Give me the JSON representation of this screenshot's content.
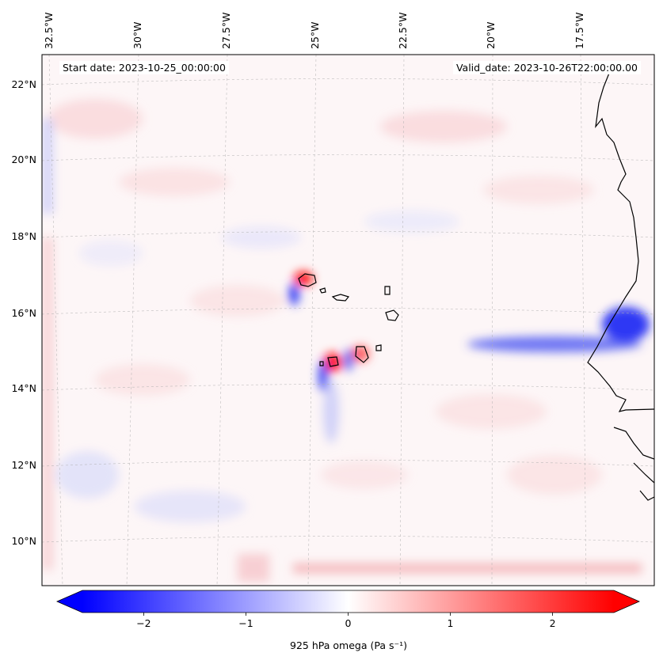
{
  "annotations": {
    "start_date": "Start date: 2023-10-25_00:00:00",
    "valid_date": "Valid_date: 2023-10-26T22:00:00.00"
  },
  "longitude_labels": [
    "32.5°W",
    "30°W",
    "27.5°W",
    "25°W",
    "22.5°W",
    "20°W",
    "17.5°W"
  ],
  "latitude_labels": [
    "22°N",
    "20°N",
    "18°N",
    "16°N",
    "14°N",
    "12°N",
    "10°N"
  ],
  "colorbar": {
    "ticks": [
      -2,
      -1,
      0,
      1,
      2
    ],
    "tick_labels": [
      "−2",
      "−1",
      "0",
      "1",
      "2"
    ],
    "range": [
      -2.6,
      2.6
    ],
    "label": "925 hPa omega (Pa s⁻¹)",
    "cmap_low": "#0000ff",
    "cmap_mid": "#ffffff",
    "cmap_high": "#ff0000"
  },
  "chart_data": {
    "type": "heatmap",
    "title": "",
    "variable": "925 hPa omega",
    "units": "Pa s⁻¹",
    "lon_range": [
      -33.0,
      -15.5
    ],
    "lat_range": [
      9.0,
      22.5
    ],
    "features": [
      {
        "name": "strong ascent band near west African coast",
        "lat": 15.3,
        "value": -2.3
      },
      {
        "name": "Santo Antão lee couplet",
        "lat": 16.9,
        "value": 2.5
      },
      {
        "name": "Fogo lee couplet",
        "lat": 14.8,
        "value": 2.5
      },
      {
        "name": "Santiago lee couplet",
        "lat": 15.0,
        "value": 1.8
      }
    ]
  }
}
